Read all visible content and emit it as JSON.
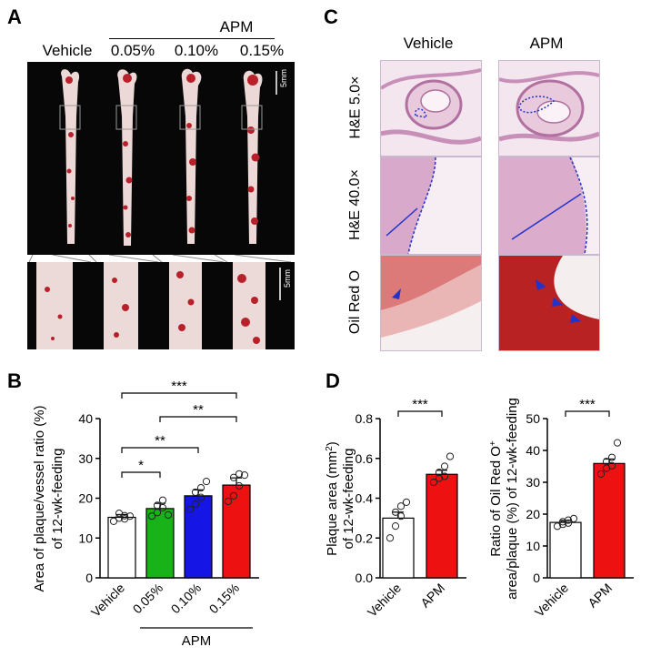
{
  "panels": {
    "A": "A",
    "B": "B",
    "C": "C",
    "D": "D"
  },
  "panel_a": {
    "group_label": "APM",
    "columns": [
      "Vehicle",
      "0.05%",
      "0.10%",
      "0.15%"
    ],
    "scale_bar": "5mm",
    "scale_bar_zoom": "5mm"
  },
  "panel_c": {
    "columns": [
      "Vehicle",
      "APM"
    ],
    "rows": [
      "H&E 5.0×",
      "H&E 40.0×",
      "Oil Red O"
    ]
  },
  "chart_data": [
    {
      "type": "bar",
      "panel": "B",
      "categories": [
        "Vehicle",
        "0.05%",
        "0.10%",
        "0.15%"
      ],
      "group_label": "APM",
      "values": [
        15.2,
        17.4,
        20.6,
        23.3
      ],
      "errors": [
        0.7,
        1.3,
        1.5,
        1.8
      ],
      "colors": [
        "#ffffff",
        "#18b318",
        "#1515e6",
        "#ee1111"
      ],
      "points": [
        [
          14.2,
          15.0,
          15.6,
          16.2,
          14.8,
          15.5
        ],
        [
          15.5,
          16.4,
          17.6,
          18.2,
          19.5,
          15.8
        ],
        [
          17.2,
          18.5,
          20.2,
          21.5,
          22.6,
          24.2
        ],
        [
          19.2,
          20.6,
          23.1,
          25.2,
          26.1,
          25.8
        ]
      ],
      "ylabel": "Area of plaque/vessel ratio (%) of 12-wk-feeding",
      "ylim": [
        0,
        40
      ],
      "yticks": [
        "0",
        "10",
        "20",
        "30",
        "40"
      ],
      "significance": [
        {
          "from": 0,
          "to": 3,
          "label": "***"
        },
        {
          "from": 1,
          "to": 3,
          "label": "**"
        },
        {
          "from": 0,
          "to": 2,
          "label": "**"
        },
        {
          "from": 0,
          "to": 1,
          "label": "*"
        }
      ]
    },
    {
      "type": "bar",
      "panel": "D-left",
      "categories": [
        "Vehicle",
        "APM"
      ],
      "values": [
        0.3,
        0.52
      ],
      "errors": [
        0.03,
        0.02
      ],
      "colors": [
        "#ffffff",
        "#ee1111"
      ],
      "points": [
        [
          0.2,
          0.26,
          0.31,
          0.33,
          0.36,
          0.38
        ],
        [
          0.48,
          0.5,
          0.51,
          0.53,
          0.56,
          0.61
        ]
      ],
      "ylabel": "Plaque area (mm²) of 12-wk-feeding",
      "ylabel_prefix": "Plaque area (mm",
      "ylabel_sup": "2",
      "ylabel_suffix": ")",
      "ylabel_line2": "of 12-wk-feeding",
      "ylim": [
        0,
        0.8
      ],
      "yticks": [
        "0.0",
        "0.2",
        "0.4",
        "0.6",
        "0.8"
      ],
      "significance": [
        {
          "from": 0,
          "to": 1,
          "label": "***"
        }
      ]
    },
    {
      "type": "bar",
      "panel": "D-right",
      "categories": [
        "Vehicle",
        "APM"
      ],
      "values": [
        17.4,
        35.9
      ],
      "errors": [
        0.6,
        1.4
      ],
      "colors": [
        "#ffffff",
        "#ee1111"
      ],
      "points": [
        [
          16.2,
          16.8,
          17.2,
          17.6,
          18.1,
          18.6
        ],
        [
          32.6,
          34.4,
          35.2,
          36.5,
          37.8,
          42.4
        ]
      ],
      "ylabel": "Ratio of Oil Red O⁺ area/plaque (%) of 12-wk-feeding",
      "ylabel_line1": "Ratio of Oil Red O",
      "ylabel_sup": "+",
      "ylabel_line2": "area/plaque (%) of 12-wk-feeding",
      "ylim": [
        0,
        50
      ],
      "yticks": [
        "0",
        "10",
        "20",
        "30",
        "40",
        "50"
      ],
      "significance": [
        {
          "from": 0,
          "to": 1,
          "label": "***"
        }
      ]
    }
  ]
}
